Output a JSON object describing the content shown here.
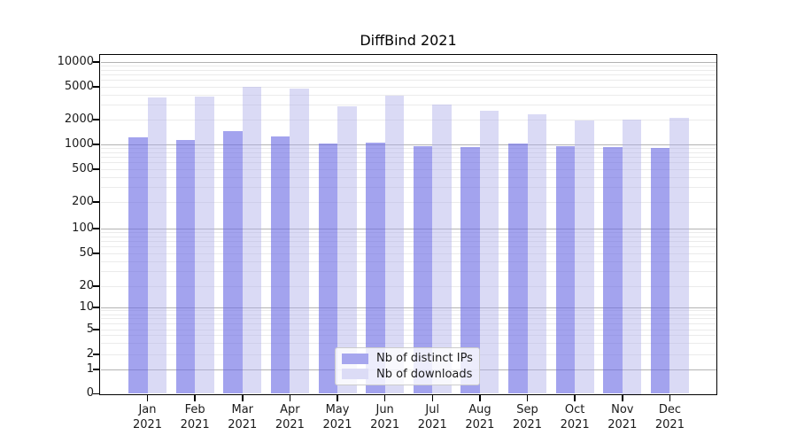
{
  "chart_data": {
    "type": "bar",
    "title": "DiffBind 2021",
    "categories": [
      "Jan",
      "Feb",
      "Mar",
      "Apr",
      "May",
      "Jun",
      "Jul",
      "Aug",
      "Sep",
      "Oct",
      "Nov",
      "Dec"
    ],
    "category_year": "2021",
    "series": [
      {
        "name": "Nb of distinct IPs",
        "color": "#a6a6ee",
        "fill": "rgba(106,106,228,0.62)",
        "values": [
          1220,
          1130,
          1450,
          1250,
          1030,
          1050,
          950,
          925,
          1030,
          950,
          935,
          900
        ]
      },
      {
        "name": "Nb of downloads",
        "color": "#dcdcf6",
        "fill": "rgba(173,173,232,0.45)",
        "values": [
          3720,
          3780,
          5050,
          4760,
          2900,
          3900,
          3050,
          2550,
          2320,
          1950,
          2000,
          2080
        ]
      }
    ],
    "yscale": "log-with-zero",
    "yticks": [
      0,
      1,
      2,
      5,
      10,
      20,
      50,
      100,
      200,
      500,
      1000,
      2000,
      5000,
      10000
    ],
    "ylim": [
      0,
      12500
    ],
    "grid": "on",
    "legend_position": "inside lower center",
    "colors": {
      "grid_major": "#b3b3b3",
      "grid_minor": "#ebebeb",
      "spine": "#000000",
      "text": "#1a1a1a",
      "background": "#ffffff"
    }
  }
}
